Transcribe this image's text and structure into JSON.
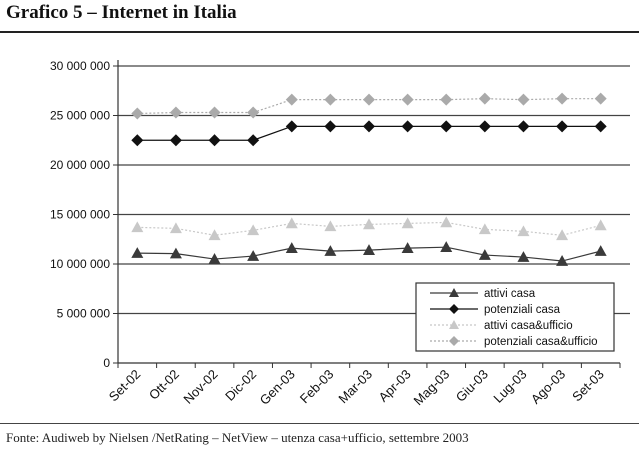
{
  "header": {
    "title": "Grafico 5 – Internet in Italia"
  },
  "footer": {
    "source": "Fonte: Audiweb by Nielsen /NetRating – NetView – utenza casa+ufficio, settembre 2003"
  },
  "chart_data": {
    "type": "line",
    "title": "",
    "xlabel": "",
    "ylabel": "",
    "categories": [
      "Set-02",
      "Ott-02",
      "Nov-02",
      "Dic-02",
      "Gen-03",
      "Feb-03",
      "Mar-03",
      "Apr-03",
      "Mag-03",
      "Giu-03",
      "Lug-03",
      "Ago-03",
      "Set-03"
    ],
    "ylim": [
      0,
      30000000
    ],
    "yticks": [
      0,
      5000000,
      10000000,
      15000000,
      20000000,
      25000000,
      30000000
    ],
    "ytick_labels": [
      "0",
      "5 000 000",
      "10 000 000",
      "15 000 000",
      "20 000 000",
      "25 000 000",
      "30 000 000"
    ],
    "grid": "horizontal",
    "legend_position": "bottom-right",
    "series": [
      {
        "name": "attivi casa",
        "marker": "triangle",
        "color": "#3a3a3a",
        "values": [
          11100000,
          11050000,
          10500000,
          10800000,
          11600000,
          11300000,
          11400000,
          11600000,
          11700000,
          10900000,
          10700000,
          10300000,
          11300000
        ]
      },
      {
        "name": "potenziali casa",
        "marker": "diamond",
        "color": "#111111",
        "values": [
          22500000,
          22500000,
          22500000,
          22500000,
          23900000,
          23900000,
          23900000,
          23900000,
          23900000,
          23900000,
          23900000,
          23900000,
          23900000
        ]
      },
      {
        "name": "attivi casa&ufficio",
        "marker": "triangle",
        "color": "#c8c8c8",
        "values": [
          13700000,
          13600000,
          12900000,
          13400000,
          14100000,
          13800000,
          14000000,
          14100000,
          14200000,
          13500000,
          13300000,
          12900000,
          13900000
        ]
      },
      {
        "name": "potenziali casa&ufficio",
        "marker": "diamond",
        "color": "#aaaaaa",
        "values": [
          25200000,
          25300000,
          25300000,
          25300000,
          26600000,
          26600000,
          26600000,
          26600000,
          26600000,
          26700000,
          26600000,
          26700000,
          26700000
        ]
      }
    ]
  }
}
